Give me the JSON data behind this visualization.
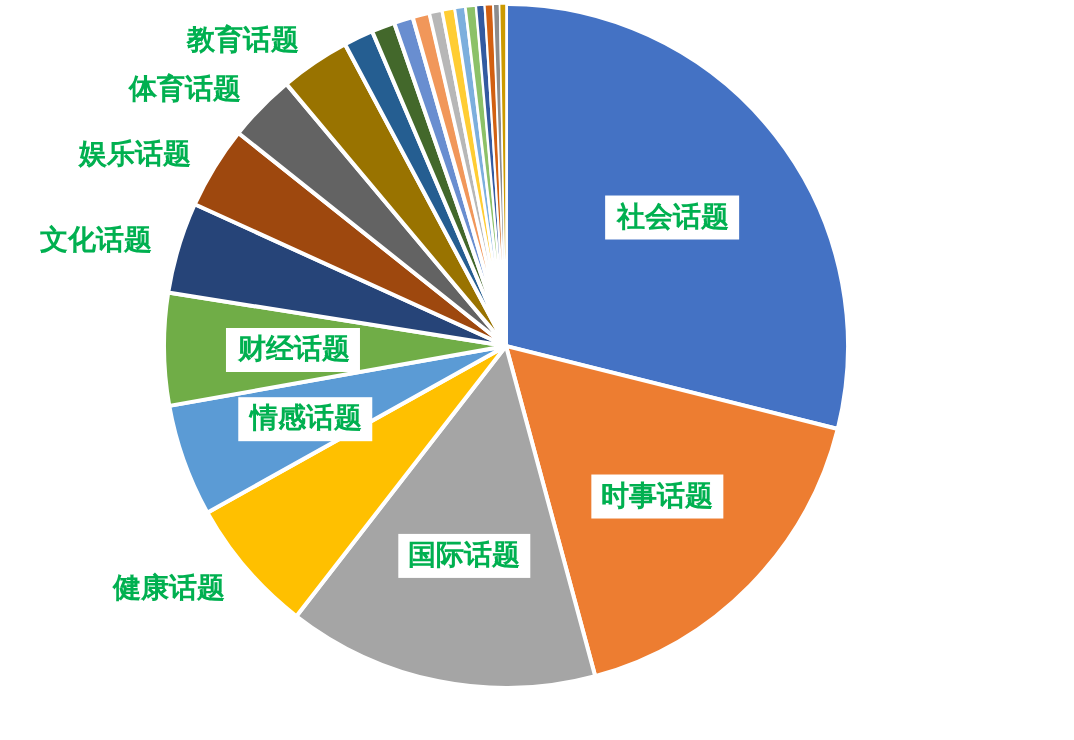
{
  "chart_data": {
    "type": "pie",
    "categories": [
      "社会话题",
      "时事话题",
      "国际话题",
      "健康话题",
      "情感话题",
      "财经话题",
      "文化话题",
      "娱乐话题",
      "体育话题",
      "教育话题",
      null,
      null,
      null,
      null,
      null,
      null,
      null,
      null,
      null,
      null,
      null,
      null
    ],
    "values": [
      28.9,
      16.9,
      14.7,
      6.4,
      5.3,
      5.3,
      4.3,
      3.9,
      3.2,
      3.3,
      1.4,
      1.1,
      0.9,
      0.8,
      0.6,
      0.6,
      0.5,
      0.5,
      0.4,
      0.4,
      0.3,
      0.3
    ],
    "colors": [
      "#4472c4",
      "#ed7d31",
      "#a5a5a5",
      "#ffc000",
      "#5b9bd5",
      "#70ad47",
      "#264478",
      "#9e480e",
      "#636363",
      "#997300",
      "#255e91",
      "#43682b",
      "#698ed0",
      "#f1975a",
      "#b7b7b7",
      "#ffcd33",
      "#7cafdd",
      "#8cc168",
      "#335aa1",
      "#d26012",
      "#8c8c8c",
      "#cc9a00"
    ]
  }
}
